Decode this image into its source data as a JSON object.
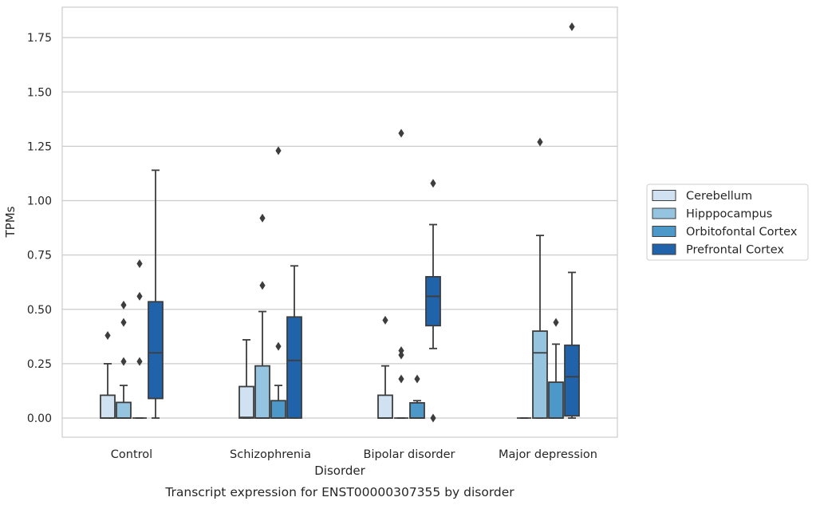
{
  "chart_data": {
    "type": "box",
    "title": "",
    "caption": "Transcript expression for ENST00000307355 by disorder",
    "xlabel": "Disorder",
    "ylabel": "TPMs",
    "ylim": [
      -0.088,
      1.89
    ],
    "yticks": [
      0.0,
      0.25,
      0.5,
      0.75,
      1.0,
      1.25,
      1.5,
      1.75
    ],
    "ytick_labels": [
      "0.00",
      "0.25",
      "0.50",
      "0.75",
      "1.00",
      "1.25",
      "1.50",
      "1.75"
    ],
    "grid": "horizontal",
    "legend_placement": "outside-right",
    "categories": [
      "Control",
      "Schizophrenia",
      "Bipolar disorder",
      "Major depression"
    ],
    "series": [
      {
        "name": "Cerebellum",
        "color": "#d0e1f2",
        "boxes": [
          {
            "q1": 0.0,
            "median": 0.0,
            "q3": 0.105,
            "whislo": 0.0,
            "whishi": 0.25,
            "fliers": [
              0.38
            ]
          },
          {
            "q1": 0.0,
            "median": 0.003,
            "q3": 0.145,
            "whislo": 0.0,
            "whishi": 0.36,
            "fliers": []
          },
          {
            "q1": 0.0,
            "median": 0.0,
            "q3": 0.105,
            "whislo": 0.0,
            "whishi": 0.24,
            "fliers": [
              0.45
            ]
          },
          {
            "q1": 0.0,
            "median": 0.0,
            "q3": 0.0,
            "whislo": 0.0,
            "whishi": 0.0,
            "fliers": []
          }
        ]
      },
      {
        "name": "Hipppocampus",
        "color": "#94c4df",
        "boxes": [
          {
            "q1": 0.0,
            "median": 0.0,
            "q3": 0.072,
            "whislo": 0.0,
            "whishi": 0.15,
            "fliers": [
              0.26,
              0.44,
              0.52
            ]
          },
          {
            "q1": 0.0,
            "median": 0.0,
            "q3": 0.24,
            "whislo": 0.0,
            "whishi": 0.49,
            "fliers": [
              0.61,
              0.92
            ]
          },
          {
            "q1": 0.0,
            "median": 0.0,
            "q3": 0.0,
            "whislo": 0.0,
            "whishi": 0.0,
            "fliers": [
              0.18,
              0.29,
              0.31,
              1.31
            ]
          },
          {
            "q1": 0.0,
            "median": 0.3,
            "q3": 0.4,
            "whislo": 0.0,
            "whishi": 0.84,
            "fliers": [
              1.27
            ]
          }
        ]
      },
      {
        "name": "Orbitofontal Cortex",
        "color": "#4b98c9",
        "boxes": [
          {
            "q1": 0.0,
            "median": 0.0,
            "q3": 0.0,
            "whislo": 0.0,
            "whishi": 0.0,
            "fliers": [
              0.26,
              0.56,
              0.71
            ]
          },
          {
            "q1": 0.0,
            "median": 0.0,
            "q3": 0.08,
            "whislo": 0.0,
            "whishi": 0.15,
            "fliers": [
              0.33,
              1.23
            ]
          },
          {
            "q1": 0.0,
            "median": 0.0,
            "q3": 0.07,
            "whislo": 0.0,
            "whishi": 0.08,
            "fliers": [
              0.18
            ]
          },
          {
            "q1": 0.0,
            "median": 0.0,
            "q3": 0.165,
            "whislo": 0.0,
            "whishi": 0.34,
            "fliers": [
              0.44
            ]
          }
        ]
      },
      {
        "name": "Prefrontal Cortex",
        "color": "#2163aa",
        "boxes": [
          {
            "q1": 0.09,
            "median": 0.3,
            "q3": 0.535,
            "whislo": 0.0,
            "whishi": 1.14,
            "fliers": []
          },
          {
            "q1": 0.0,
            "median": 0.265,
            "q3": 0.465,
            "whislo": 0.0,
            "whishi": 0.7,
            "fliers": []
          },
          {
            "q1": 0.425,
            "median": 0.56,
            "q3": 0.65,
            "whislo": 0.32,
            "whishi": 0.89,
            "fliers": [
              0.0,
              1.08
            ]
          },
          {
            "q1": 0.01,
            "median": 0.19,
            "q3": 0.335,
            "whislo": 0.0,
            "whishi": 0.67,
            "fliers": [
              1.8
            ]
          }
        ]
      }
    ]
  }
}
